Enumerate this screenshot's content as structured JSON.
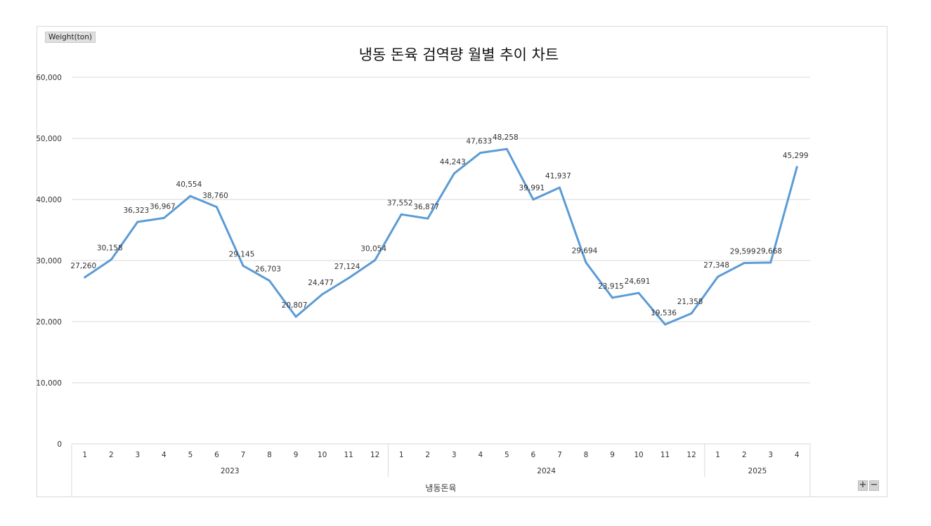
{
  "unit_button": "Weight(ton)",
  "chart_data": {
    "type": "line",
    "title": "냉동 돈육 검역량 월별 추이 차트",
    "xlabel": "냉동돈육",
    "ylabel": "Weight(ton)",
    "ylim": [
      0,
      60000
    ],
    "yticks": [
      "0",
      "10,000",
      "20,000",
      "30,000",
      "40,000",
      "50,000",
      "60,000"
    ],
    "grid": true,
    "groups": [
      {
        "label": "2023",
        "months": [
          "1",
          "2",
          "3",
          "4",
          "5",
          "6",
          "7",
          "8",
          "9",
          "10",
          "11",
          "12"
        ]
      },
      {
        "label": "2024",
        "months": [
          "1",
          "2",
          "3",
          "4",
          "5",
          "6",
          "7",
          "8",
          "9",
          "10",
          "11",
          "12"
        ]
      },
      {
        "label": "2025",
        "months": [
          "1",
          "2",
          "3",
          "4"
        ]
      }
    ],
    "series": [
      {
        "color": "#5b9bd5",
        "values": [
          27260,
          30158,
          36323,
          36967,
          40554,
          38760,
          29145,
          26703,
          20807,
          24477,
          27124,
          30054,
          37552,
          36877,
          44243,
          47633,
          48258,
          39991,
          41937,
          29694,
          23915,
          24691,
          19536,
          21358,
          27348,
          29599,
          29668,
          45299
        ],
        "labels": [
          "27,260",
          "30,158",
          "36,323",
          "36,967",
          "40,554",
          "38,760",
          "29,145",
          "26,703",
          "20,807",
          "24,477",
          "27,124",
          "30,054",
          "37,552",
          "36,877",
          "44,243",
          "47,633",
          "48,258",
          "39,991",
          "41,937",
          "29,694",
          "23,915",
          "24,691",
          "19,536",
          "21,358",
          "27,348",
          "29,599",
          "29,668",
          "45,299"
        ]
      }
    ]
  },
  "zoom_in": "+",
  "zoom_out": "−"
}
